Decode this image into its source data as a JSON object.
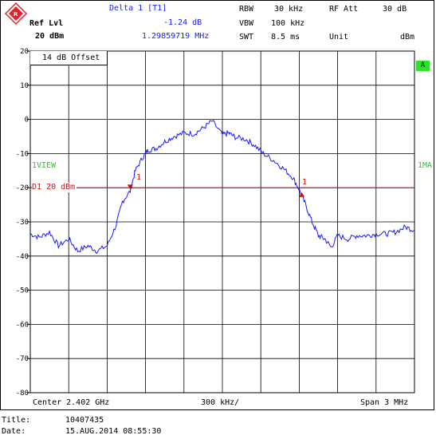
{
  "header": {
    "delta_label": "Delta 1 [T1]",
    "delta_level": "-1.24 dB",
    "delta_freq": "1.29859719 MHz",
    "ref_lvl_label": "Ref Lvl",
    "ref_lvl_value": "20 dBm",
    "rbw_label": "RBW",
    "rbw_value": "30 kHz",
    "vbw_label": "VBW",
    "vbw_value": "100 kHz",
    "swt_label": "SWT",
    "swt_value": "8.5 ms",
    "rfatt_label": "RF Att",
    "rfatt_value": "30 dB",
    "unit_label": "Unit",
    "unit_value": "dBm"
  },
  "plot": {
    "offset_label": "14 dB Offset",
    "badge": "A",
    "view_label": "1VIEW",
    "view_right_label": "1MA",
    "d1_label": "D1  20 dBm",
    "marker1_label": "1",
    "marker2_label": "1",
    "y_ticks": [
      "20",
      "10",
      "0",
      "-10",
      "-20",
      "-30",
      "-40",
      "-50",
      "-60",
      "-70",
      "-80"
    ],
    "center_label": "Center 2.402 GHz",
    "div_label": "300 kHz/",
    "span_label": "Span 3 MHz"
  },
  "footer": {
    "title_label": "Title:",
    "title_value": "10407435",
    "date_label": "Date:",
    "date_value": "15.AUG.2014  08:55:30"
  },
  "colors": {
    "trace": "#1a1aff",
    "display_line": "#cc1111",
    "grid": "#000000",
    "status_badge": "#2fe02f",
    "logo": "#e0242b"
  },
  "chart_data": {
    "type": "line",
    "xlabel": "",
    "ylabel": "",
    "x_center_ghz": 2.402,
    "x_span_mhz": 3,
    "xlim_mhz": [
      -1.5,
      1.5
    ],
    "ylim": [
      -80,
      20
    ],
    "display_line_dbm": -20,
    "grid": true,
    "series": [
      {
        "x": [
          -1.5,
          -1.43,
          -1.35,
          -1.28,
          -1.2,
          -1.13,
          -1.05,
          -0.98,
          -0.9,
          -0.83,
          -0.78,
          -0.72,
          -0.68,
          -0.62,
          -0.58,
          -0.52,
          -0.45,
          -0.38,
          -0.3,
          -0.22,
          -0.15,
          -0.08,
          0.0,
          0.05,
          0.1,
          0.18,
          0.25,
          0.32,
          0.4,
          0.48,
          0.55,
          0.6,
          0.65,
          0.7,
          0.75,
          0.8,
          0.85,
          0.9,
          0.98,
          1.05,
          1.13,
          1.2,
          1.28,
          1.35,
          1.43,
          1.5
        ],
        "y": [
          -33.5,
          -34.5,
          -33,
          -37,
          -35,
          -38.5,
          -37,
          -38.5,
          -37,
          -31,
          -24,
          -21,
          -15,
          -11,
          -9,
          -8.5,
          -6.5,
          -5,
          -4,
          -4.2,
          -2.5,
          -0.5,
          -4.5,
          -4,
          -5.2,
          -5.8,
          -7.5,
          -10,
          -12,
          -14.5,
          -17,
          -20.5,
          -25,
          -30,
          -34,
          -35,
          -37.5,
          -34,
          -35,
          -34,
          -34,
          -33.5,
          -33.5,
          -33,
          -31.5,
          -32.5
        ]
      }
    ]
  }
}
